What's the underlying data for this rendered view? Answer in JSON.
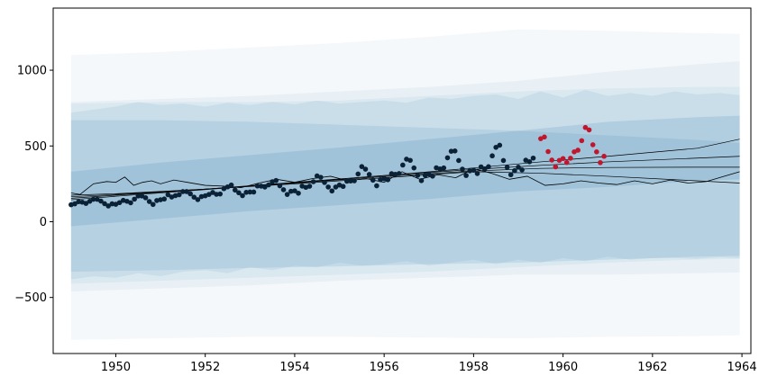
{
  "chart_data": {
    "type": "scatter",
    "title": "",
    "xlabel": "",
    "ylabel": "",
    "xlim": [
      1948.6,
      1964.2
    ],
    "ylim": [
      -870,
      1410
    ],
    "x_ticks": [
      1950,
      1952,
      1954,
      1956,
      1958,
      1960,
      1962,
      1964
    ],
    "x_tick_labels": [
      "1950",
      "1952",
      "1954",
      "1956",
      "1958",
      "1960",
      "1962",
      "1964"
    ],
    "y_ticks": [
      -500,
      0,
      500,
      1000
    ],
    "y_tick_labels": [
      "−500",
      "0",
      "500",
      "1000"
    ],
    "grid": false,
    "colors": {
      "observed": "#0b2236",
      "holdout": "#c0172f",
      "band": "#2f7bb0",
      "line": "#000000"
    },
    "series": [
      {
        "kind": "points",
        "color_key": "observed",
        "x": [
          1949.0,
          1949.083,
          1949.167,
          1949.25,
          1949.333,
          1949.417,
          1949.5,
          1949.583,
          1949.667,
          1949.75,
          1949.833,
          1949.917,
          1950.0,
          1950.083,
          1950.167,
          1950.25,
          1950.333,
          1950.417,
          1950.5,
          1950.583,
          1950.667,
          1950.75,
          1950.833,
          1950.917,
          1951.0,
          1951.083,
          1951.167,
          1951.25,
          1951.333,
          1951.417,
          1951.5,
          1951.583,
          1951.667,
          1951.75,
          1951.833,
          1951.917,
          1952.0,
          1952.083,
          1952.167,
          1952.25,
          1952.333,
          1952.417,
          1952.5,
          1952.583,
          1952.667,
          1952.75,
          1952.833,
          1952.917,
          1953.0,
          1953.083,
          1953.167,
          1953.25,
          1953.333,
          1953.417,
          1953.5,
          1953.583,
          1953.667,
          1953.75,
          1953.833,
          1953.917,
          1954.0,
          1954.083,
          1954.167,
          1954.25,
          1954.333,
          1954.417,
          1954.5,
          1954.583,
          1954.667,
          1954.75,
          1954.833,
          1954.917,
          1955.0,
          1955.083,
          1955.167,
          1955.25,
          1955.333,
          1955.417,
          1955.5,
          1955.583,
          1955.667,
          1955.75,
          1955.833,
          1955.917,
          1956.0,
          1956.083,
          1956.167,
          1956.25,
          1956.333,
          1956.417,
          1956.5,
          1956.583,
          1956.667,
          1956.75,
          1956.833,
          1956.917,
          1957.0,
          1957.083,
          1957.167,
          1957.25,
          1957.333,
          1957.417,
          1957.5,
          1957.583,
          1957.667,
          1957.75,
          1957.833,
          1957.917,
          1958.0,
          1958.083,
          1958.167,
          1958.25,
          1958.333,
          1958.417,
          1958.5,
          1958.583,
          1958.667,
          1958.75,
          1958.833,
          1958.917,
          1959.0,
          1959.083,
          1959.167,
          1959.25,
          1959.333
        ],
        "y": [
          112,
          118,
          132,
          129,
          121,
          135,
          148,
          148,
          136,
          119,
          104,
          118,
          115,
          126,
          141,
          135,
          125,
          149,
          170,
          170,
          158,
          133,
          114,
          140,
          145,
          150,
          178,
          163,
          172,
          178,
          199,
          199,
          184,
          162,
          146,
          166,
          171,
          180,
          193,
          181,
          183,
          218,
          230,
          242,
          209,
          191,
          172,
          194,
          196,
          196,
          236,
          235,
          229,
          243,
          264,
          272,
          237,
          211,
          180,
          201,
          204,
          188,
          235,
          227,
          234,
          264,
          302,
          293,
          259,
          229,
          203,
          229,
          242,
          233,
          267,
          269,
          270,
          315,
          364,
          347,
          312,
          274,
          237,
          278,
          284,
          277,
          317,
          313,
          318,
          374,
          413,
          405,
          355,
          306,
          271,
          306,
          315,
          301,
          356,
          348,
          355,
          422,
          465,
          467,
          404,
          347,
          305,
          336,
          340,
          318,
          362,
          348,
          363,
          435,
          491,
          505,
          404,
          359,
          310,
          337,
          360,
          342,
          406,
          396,
          420
        ]
      },
      {
        "kind": "points",
        "color_key": "holdout",
        "x": [
          1959.5,
          1959.583,
          1959.667,
          1959.75,
          1959.833,
          1959.917,
          1960.0,
          1960.083,
          1960.167,
          1960.25,
          1960.333,
          1960.417,
          1960.5,
          1960.583,
          1960.667,
          1960.75,
          1960.833,
          1960.917
        ],
        "y": [
          548,
          559,
          463,
          407,
          362,
          405,
          417,
          391,
          419,
          461,
          472,
          535,
          622,
          606,
          508,
          461,
          390,
          432
        ]
      },
      {
        "kind": "line",
        "color_key": "line",
        "x": [
          1949.0,
          1950.0,
          1952.0,
          1954.0,
          1956.0,
          1958.0,
          1959.5,
          1961.0,
          1963.0,
          1963.95
        ],
        "y": [
          145,
          168,
          212,
          258,
          304,
          355,
          395,
          432,
          485,
          545
        ]
      },
      {
        "kind": "line",
        "color_key": "line",
        "x": [
          1949.0,
          1950.0,
          1952.0,
          1954.0,
          1956.0,
          1958.0,
          1959.5,
          1961.0,
          1963.0,
          1963.95
        ],
        "y": [
          155,
          175,
          215,
          260,
          305,
          345,
          372,
          395,
          420,
          432
        ]
      },
      {
        "kind": "line",
        "color_key": "line",
        "x": [
          1949.0,
          1950.0,
          1952.0,
          1954.0,
          1956.0,
          1958.0,
          1959.5,
          1961.0,
          1963.0,
          1963.95
        ],
        "y": [
          165,
          180,
          215,
          255,
          298,
          335,
          352,
          358,
          360,
          360
        ]
      },
      {
        "kind": "line",
        "color_key": "line",
        "x": [
          1949.0,
          1950.0,
          1952.0,
          1954.0,
          1956.0,
          1958.0,
          1959.5,
          1961.0,
          1963.0,
          1963.95
        ],
        "y": [
          175,
          185,
          215,
          250,
          290,
          330,
          320,
          300,
          270,
          255
        ]
      },
      {
        "kind": "noisy_line",
        "color_key": "line",
        "x": [
          1949.0,
          1949.2,
          1949.5,
          1949.8,
          1950.0,
          1950.2,
          1950.4,
          1950.6,
          1950.8,
          1951.0,
          1951.3,
          1951.6,
          1952.0,
          1952.4,
          1952.8,
          1953.2,
          1953.6,
          1954.0,
          1954.4,
          1954.8,
          1955.2,
          1955.6,
          1956.0,
          1956.4,
          1956.8,
          1957.2,
          1957.6,
          1958.0,
          1958.4,
          1958.8,
          1959.2,
          1959.6,
          1960.0,
          1960.4,
          1960.8,
          1961.2,
          1961.6,
          1962.0,
          1962.4,
          1962.8,
          1963.2,
          1963.6,
          1963.95
        ],
        "y": [
          190,
          180,
          250,
          265,
          260,
          295,
          240,
          260,
          270,
          250,
          275,
          260,
          240,
          235,
          225,
          255,
          280,
          260,
          285,
          300,
          270,
          285,
          260,
          330,
          280,
          310,
          290,
          350,
          320,
          280,
          300,
          240,
          250,
          270,
          255,
          245,
          270,
          250,
          275,
          255,
          265,
          300,
          330
        ]
      }
    ],
    "bands": [
      {
        "opacity": 0.055,
        "x": [
          1949.0,
          1951.0,
          1953.0,
          1955.0,
          1957.0,
          1959.0,
          1961.0,
          1963.0,
          1963.95
        ],
        "upper": [
          1100,
          1120,
          1150,
          1180,
          1220,
          1270,
          1260,
          1245,
          1240
        ],
        "lower": [
          -780,
          -770,
          -760,
          -760,
          -765,
          -770,
          -760,
          -755,
          -750
        ]
      },
      {
        "opacity": 0.06,
        "x": [
          1949.0,
          1951.0,
          1953.0,
          1955.0,
          1957.0,
          1959.0,
          1961.0,
          1963.0,
          1963.95
        ],
        "upper": [
          790,
          810,
          830,
          860,
          890,
          930,
          990,
          1040,
          1060
        ],
        "lower": [
          -460,
          -440,
          -420,
          -390,
          -370,
          -350,
          -350,
          -340,
          -335
        ]
      },
      {
        "opacity": 0.07,
        "x": [
          1949.0,
          1951.0,
          1953.0,
          1955.0,
          1957.0,
          1959.0,
          1961.0,
          1963.0,
          1963.95
        ],
        "upper": [
          780,
          790,
          790,
          800,
          830,
          860,
          880,
          890,
          890
        ],
        "lower": [
          -410,
          -390,
          -370,
          -350,
          -330,
          -300,
          -270,
          -250,
          -245
        ]
      },
      {
        "opacity": 0.09,
        "x": [
          1949.0,
          1949.5,
          1950.0,
          1950.5,
          1951.0,
          1951.5,
          1952.0,
          1952.5,
          1953.0,
          1953.5,
          1954.0,
          1954.5,
          1955.0,
          1955.5,
          1956.0,
          1956.5,
          1957.0,
          1957.5,
          1958.0,
          1958.5,
          1959.0,
          1959.5,
          1960.0,
          1960.5,
          1961.0,
          1961.5,
          1962.0,
          1962.5,
          1963.0,
          1963.5,
          1963.95
        ],
        "upper": [
          720,
          740,
          760,
          790,
          770,
          780,
          760,
          785,
          770,
          790,
          775,
          800,
          780,
          790,
          800,
          785,
          820,
          810,
          830,
          840,
          810,
          860,
          820,
          870,
          830,
          850,
          830,
          860,
          840,
          850,
          835
        ],
        "lower": [
          -380,
          -360,
          -370,
          -340,
          -360,
          -330,
          -320,
          -340,
          -300,
          -320,
          -290,
          -300,
          -270,
          -290,
          -280,
          -260,
          -290,
          -270,
          -250,
          -280,
          -250,
          -270,
          -240,
          -260,
          -230,
          -250,
          -240,
          -240,
          -245,
          -235,
          -240
        ]
      },
      {
        "opacity": 0.13,
        "x": [
          1949.0,
          1951.0,
          1953.0,
          1955.0,
          1957.0,
          1959.0,
          1961.0,
          1963.0,
          1963.95
        ],
        "upper": [
          670,
          670,
          660,
          640,
          620,
          600,
          570,
          540,
          520
        ],
        "lower": [
          -330,
          -320,
          -305,
          -295,
          -280,
          -270,
          -250,
          -230,
          -225
        ]
      },
      {
        "opacity": 0.16,
        "x": [
          1949.0,
          1951.0,
          1953.0,
          1955.0,
          1957.0,
          1959.0,
          1961.0,
          1963.0,
          1963.95
        ],
        "upper": [
          330,
          390,
          440,
          490,
          545,
          600,
          660,
          690,
          700
        ],
        "lower": [
          -30,
          20,
          70,
          110,
          150,
          200,
          230,
          270,
          280
        ]
      }
    ]
  }
}
